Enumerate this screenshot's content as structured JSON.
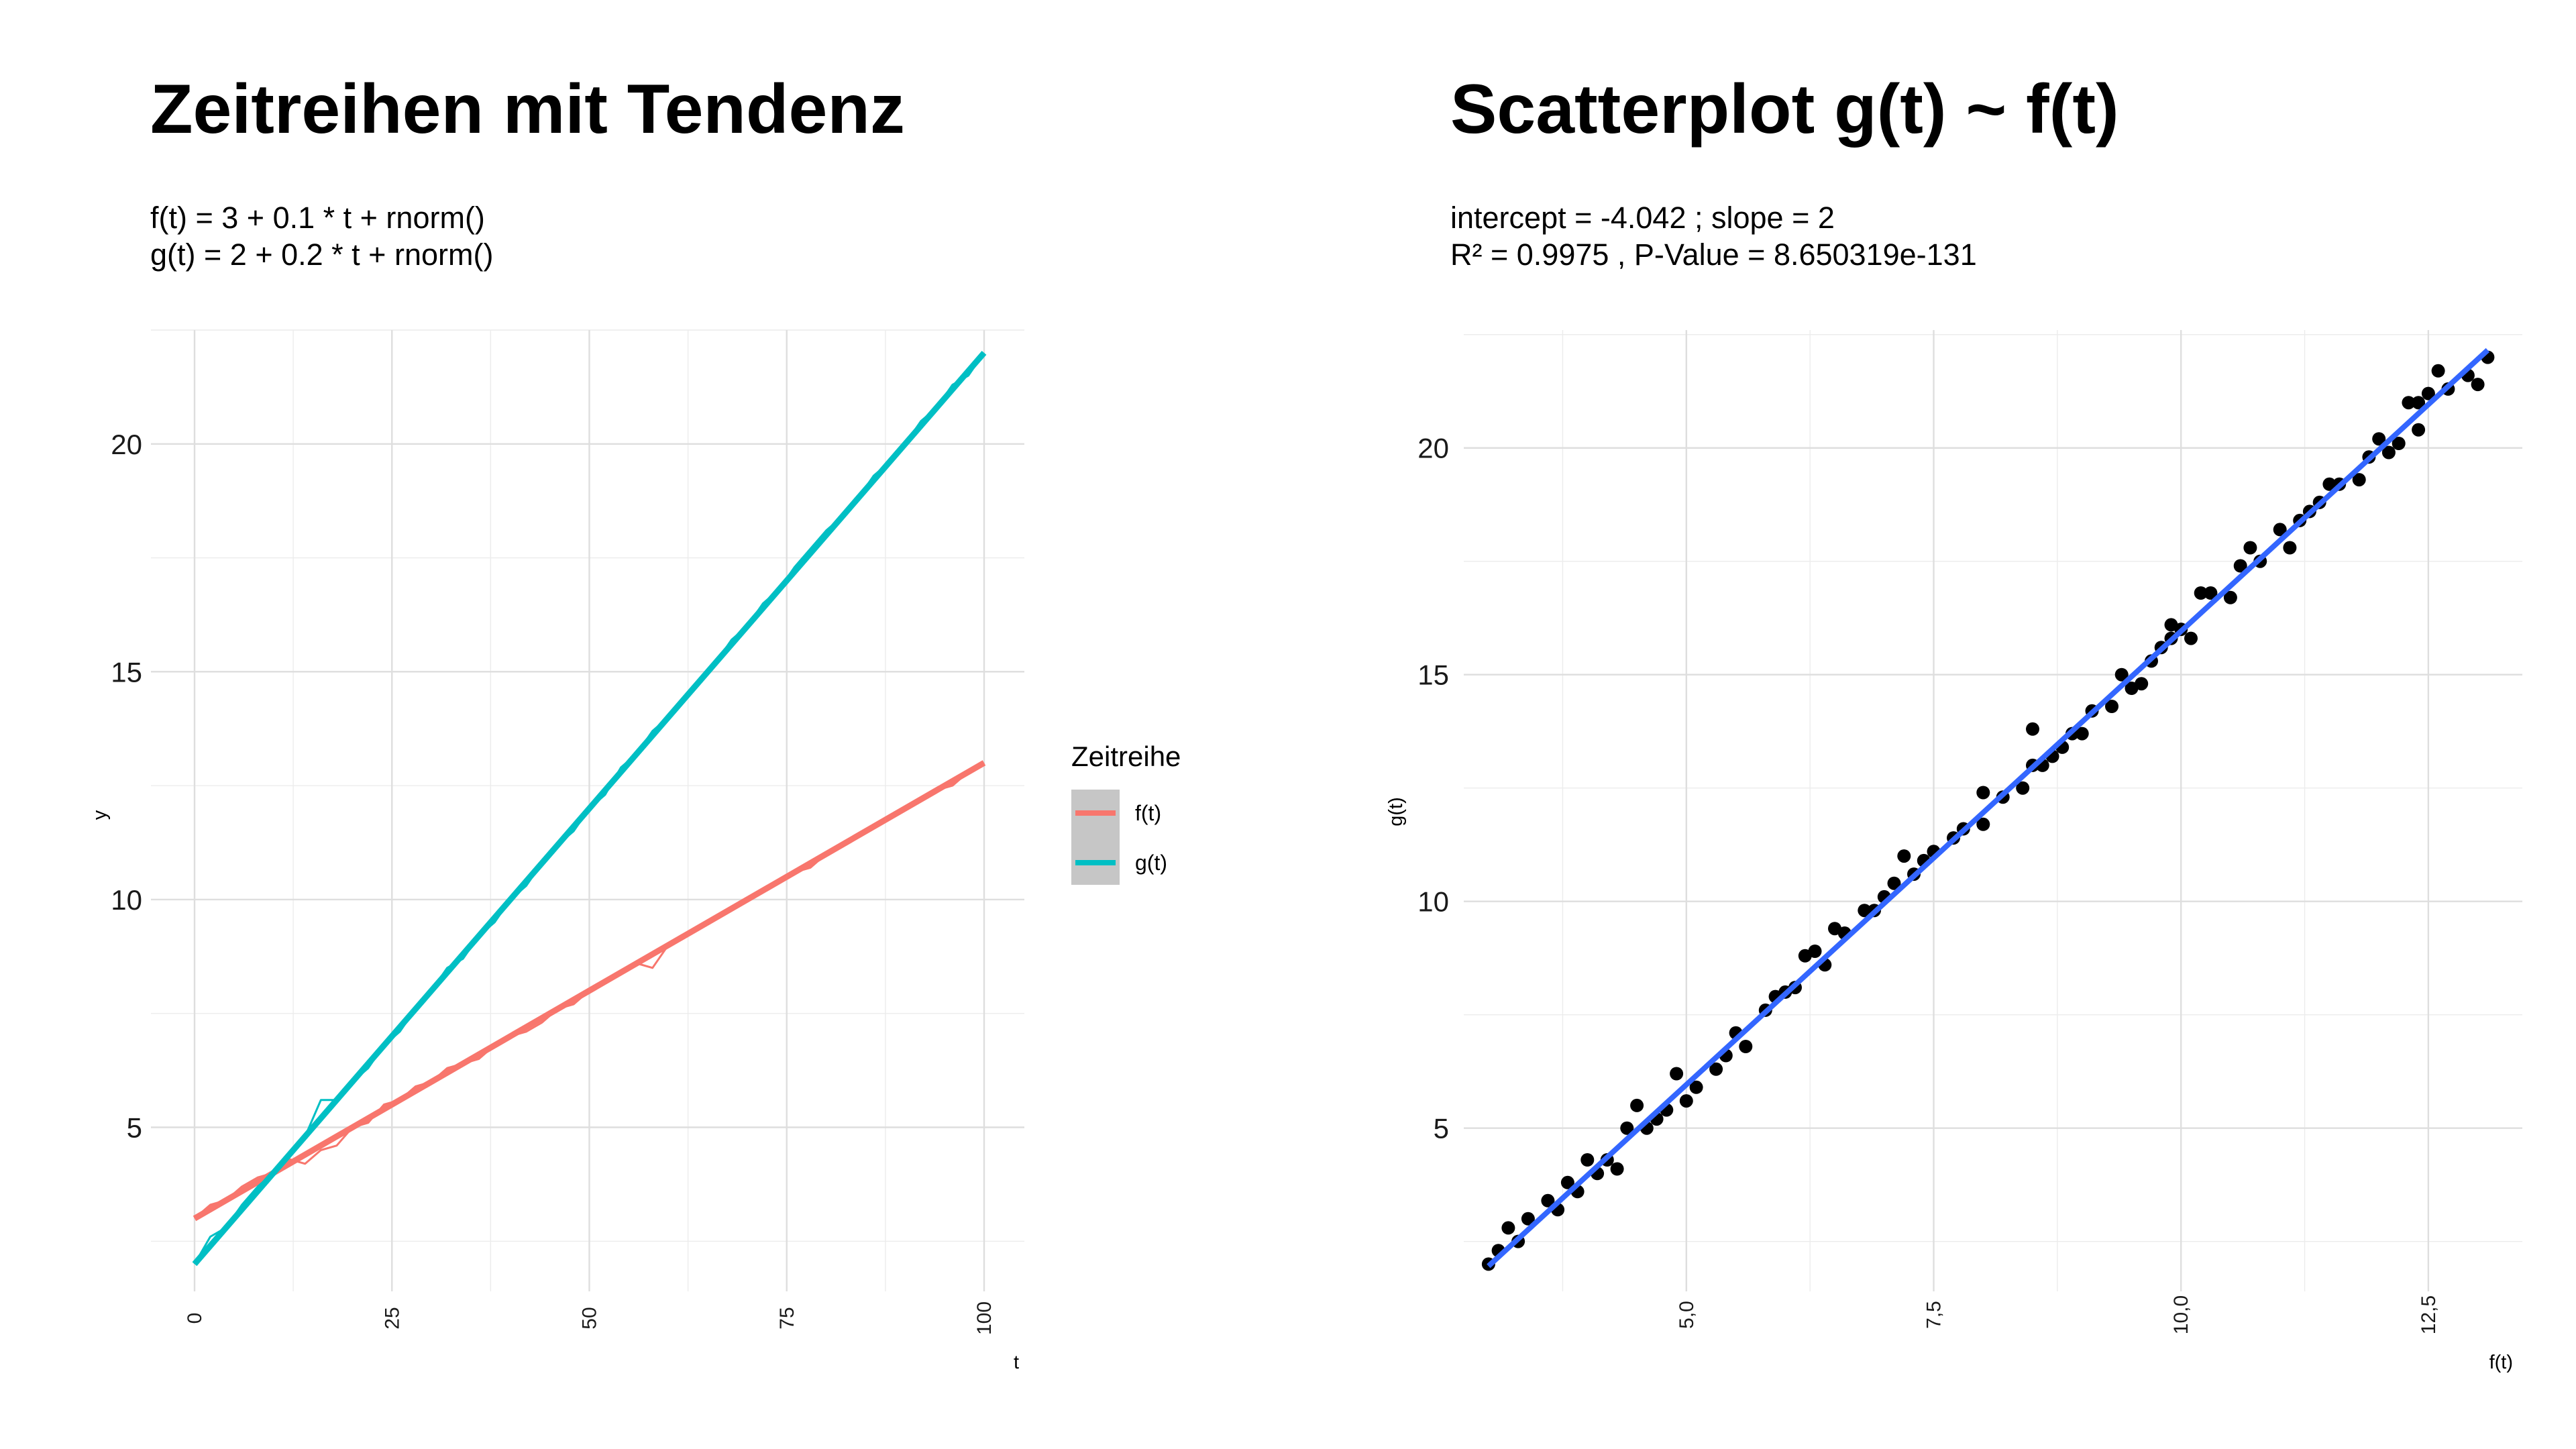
{
  "chart_data": [
    {
      "type": "line",
      "title": "Zeitreihen mit Tendenz",
      "subtitle": [
        "f(t) = 3 + 0.1 * t + rnorm()",
        "g(t) = 2 + 0.2 * t + rnorm()"
      ],
      "xlabel": "t",
      "ylabel": "y",
      "xlim": [
        0,
        100
      ],
      "ylim": [
        1.4,
        22.5
      ],
      "x_ticks": [
        0,
        25,
        50,
        75,
        100
      ],
      "x_tick_labels": [
        "0",
        "25",
        "50",
        "75",
        "100"
      ],
      "y_ticks": [
        5,
        10,
        15,
        20
      ],
      "y_tick_labels": [
        "5",
        "10",
        "15",
        "20"
      ],
      "grid": true,
      "legend": {
        "title": "Zeitreihe",
        "position": "right",
        "entries": [
          {
            "label": "f(t)",
            "color": "#F8766D"
          },
          {
            "label": "g(t)",
            "color": "#00BFC4"
          }
        ]
      },
      "series": [
        {
          "name": "f(t)",
          "color": "#F8766D",
          "trend": {
            "intercept": 3,
            "slope": 0.1
          },
          "x": [
            0,
            2,
            4,
            6,
            8,
            10,
            12,
            14,
            16,
            18,
            20,
            22,
            24,
            26,
            28,
            30,
            32,
            34,
            36,
            38,
            40,
            42,
            44,
            46,
            48,
            50,
            52,
            54,
            56,
            58,
            60,
            62,
            64,
            66,
            68,
            70,
            72,
            74,
            76,
            78,
            80,
            82,
            84,
            86,
            88,
            90,
            92,
            94,
            96,
            98,
            100
          ],
          "y": [
            3.0,
            3.3,
            3.4,
            3.7,
            3.9,
            4.0,
            4.3,
            4.2,
            4.5,
            4.6,
            5.0,
            5.1,
            5.5,
            5.6,
            5.9,
            6.0,
            6.3,
            6.4,
            6.5,
            6.8,
            7.0,
            7.1,
            7.3,
            7.6,
            7.7,
            8.0,
            8.2,
            8.4,
            8.6,
            8.5,
            9.0,
            9.2,
            9.4,
            9.6,
            9.8,
            10.0,
            10.2,
            10.4,
            10.6,
            10.7,
            11.0,
            11.2,
            11.4,
            11.6,
            11.8,
            12.0,
            12.2,
            12.4,
            12.5,
            12.8,
            13.0
          ]
        },
        {
          "name": "g(t)",
          "color": "#00BFC4",
          "trend": {
            "intercept": 2,
            "slope": 0.2
          },
          "x": [
            0,
            2,
            4,
            6,
            8,
            10,
            12,
            14,
            16,
            18,
            20,
            22,
            24,
            26,
            28,
            30,
            32,
            34,
            36,
            38,
            40,
            42,
            44,
            46,
            48,
            50,
            52,
            54,
            56,
            58,
            60,
            62,
            64,
            66,
            68,
            70,
            72,
            74,
            76,
            78,
            80,
            82,
            84,
            86,
            88,
            90,
            92,
            94,
            96,
            98,
            100
          ],
          "y": [
            2.0,
            2.6,
            2.8,
            3.3,
            3.7,
            4.0,
            4.4,
            4.8,
            5.6,
            5.6,
            6.0,
            6.3,
            6.8,
            7.1,
            7.6,
            8.0,
            8.5,
            8.7,
            9.2,
            9.5,
            10.0,
            10.3,
            10.8,
            11.2,
            11.5,
            12.0,
            12.3,
            12.9,
            13.2,
            13.7,
            14.0,
            14.4,
            14.8,
            15.2,
            15.7,
            16.0,
            16.5,
            16.8,
            17.3,
            17.7,
            18.1,
            18.4,
            18.8,
            19.3,
            19.6,
            20.0,
            20.5,
            20.8,
            21.3,
            21.5,
            22.0
          ]
        }
      ]
    },
    {
      "type": "scatter",
      "title": "Scatterplot g(t) ~ f(t)",
      "subtitle": [
        "intercept = -4.042 ; slope = 2",
        "R² = 0.9975 , P-Value = 8.650319e-131"
      ],
      "xlabel": "f(t)",
      "ylabel": "g(t)",
      "xlim": [
        2.75,
        13.45
      ],
      "ylim": [
        1.4,
        22.6
      ],
      "x_ticks": [
        5,
        7.5,
        10,
        12.5
      ],
      "x_tick_labels": [
        "5,0",
        "7,5",
        "10,0",
        "12,5"
      ],
      "y_ticks": [
        5,
        10,
        15,
        20
      ],
      "y_tick_labels": [
        "5",
        "10",
        "15",
        "20"
      ],
      "grid": true,
      "point_color": "#000000",
      "fit_color": "#3366FF",
      "fit": {
        "intercept": -4.042,
        "slope": 2,
        "x_range": [
          3.0,
          13.1
        ]
      },
      "points": [
        [
          3.0,
          2.0
        ],
        [
          3.2,
          2.8
        ],
        [
          3.3,
          2.5
        ],
        [
          3.4,
          3.0
        ],
        [
          3.6,
          3.4
        ],
        [
          3.7,
          3.2
        ],
        [
          3.8,
          3.8
        ],
        [
          3.9,
          3.6
        ],
        [
          4.0,
          4.3
        ],
        [
          4.1,
          4.0
        ],
        [
          4.2,
          4.3
        ],
        [
          4.3,
          4.1
        ],
        [
          4.4,
          5.0
        ],
        [
          4.5,
          5.5
        ],
        [
          4.6,
          5.0
        ],
        [
          4.7,
          5.2
        ],
        [
          4.9,
          6.2
        ],
        [
          5.0,
          5.6
        ],
        [
          5.1,
          5.9
        ],
        [
          5.3,
          6.3
        ],
        [
          5.4,
          6.6
        ],
        [
          5.5,
          7.1
        ],
        [
          5.6,
          6.8
        ],
        [
          5.8,
          7.6
        ],
        [
          5.9,
          7.9
        ],
        [
          6.1,
          8.1
        ],
        [
          6.2,
          8.8
        ],
        [
          6.3,
          8.9
        ],
        [
          6.4,
          8.6
        ],
        [
          6.5,
          9.4
        ],
        [
          6.6,
          9.3
        ],
        [
          6.8,
          9.8
        ],
        [
          6.9,
          9.8
        ],
        [
          7.0,
          10.1
        ],
        [
          7.1,
          10.4
        ],
        [
          7.2,
          11.0
        ],
        [
          7.4,
          10.9
        ],
        [
          7.5,
          11.1
        ],
        [
          7.7,
          11.4
        ],
        [
          7.8,
          11.6
        ],
        [
          8.0,
          12.4
        ],
        [
          8.0,
          11.7
        ],
        [
          8.2,
          12.3
        ],
        [
          8.4,
          12.5
        ],
        [
          8.5,
          13.0
        ],
        [
          8.5,
          13.8
        ],
        [
          8.6,
          13.0
        ],
        [
          8.7,
          13.2
        ],
        [
          8.9,
          13.7
        ],
        [
          9.0,
          13.7
        ],
        [
          9.1,
          14.2
        ],
        [
          9.3,
          14.3
        ],
        [
          9.4,
          15.0
        ],
        [
          9.5,
          14.7
        ],
        [
          9.6,
          14.8
        ],
        [
          9.7,
          15.3
        ],
        [
          9.8,
          15.6
        ],
        [
          9.9,
          15.8
        ],
        [
          9.9,
          16.1
        ],
        [
          10.1,
          15.8
        ],
        [
          10.2,
          16.8
        ],
        [
          10.3,
          16.8
        ],
        [
          10.5,
          16.7
        ],
        [
          10.6,
          17.4
        ],
        [
          10.7,
          17.8
        ],
        [
          10.8,
          17.5
        ],
        [
          11.0,
          18.2
        ],
        [
          11.1,
          17.8
        ],
        [
          11.2,
          18.4
        ],
        [
          11.3,
          18.6
        ],
        [
          11.5,
          19.2
        ],
        [
          11.6,
          19.2
        ],
        [
          11.8,
          19.3
        ],
        [
          11.9,
          19.8
        ],
        [
          12.0,
          20.2
        ],
        [
          12.1,
          19.9
        ],
        [
          12.2,
          20.1
        ],
        [
          12.3,
          21.0
        ],
        [
          12.4,
          20.4
        ],
        [
          12.4,
          21.0
        ],
        [
          12.5,
          21.2
        ],
        [
          12.6,
          21.7
        ],
        [
          12.9,
          21.6
        ],
        [
          13.0,
          21.4
        ],
        [
          13.1,
          22.0
        ],
        [
          3.1,
          2.3
        ],
        [
          4.8,
          5.4
        ],
        [
          6.0,
          8.0
        ],
        [
          7.3,
          10.6
        ],
        [
          8.8,
          13.4
        ],
        [
          10.0,
          16.0
        ],
        [
          11.4,
          18.8
        ],
        [
          12.7,
          21.3
        ]
      ]
    }
  ]
}
